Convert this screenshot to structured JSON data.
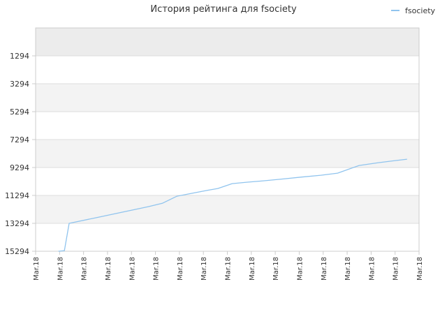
{
  "chart_data": {
    "type": "line",
    "title": "История рейтинга для fsociety",
    "xlabel": "",
    "ylabel": "",
    "y_inverted": true,
    "ylim": [
      15294,
      -706
    ],
    "y_ticks": [
      1294,
      3294,
      5294,
      7294,
      9294,
      11294,
      13294,
      15294
    ],
    "x_tick_labels": [
      "Mar.18",
      "Mar.18",
      "Mar.18",
      "Mar.18",
      "Mar.18",
      "Mar.18",
      "Mar.18",
      "Mar.18",
      "Mar.18",
      "Mar.18",
      "Mar.18",
      "Mar.18",
      "Mar.18",
      "Mar.18",
      "Mar.18",
      "Mar.18",
      "Mar.18"
    ],
    "x_range": [
      0,
      16
    ],
    "grid": true,
    "legend_position": "top-right",
    "series": [
      {
        "name": "fsociety",
        "color": "#90c4ee",
        "points": [
          [
            0.95,
            15294
          ],
          [
            1.2,
            15250
          ],
          [
            1.4,
            13294
          ],
          [
            2.5,
            12900
          ],
          [
            3.6,
            12500
          ],
          [
            4.7,
            12100
          ],
          [
            5.3,
            11850
          ],
          [
            5.9,
            11350
          ],
          [
            6.5,
            11150
          ],
          [
            7.2,
            10920
          ],
          [
            7.6,
            10800
          ],
          [
            8.2,
            10450
          ],
          [
            8.8,
            10350
          ],
          [
            9.5,
            10250
          ],
          [
            10.3,
            10120
          ],
          [
            11.1,
            9980
          ],
          [
            11.9,
            9850
          ],
          [
            12.6,
            9700
          ],
          [
            13.5,
            9150
          ],
          [
            14.3,
            8950
          ],
          [
            15.0,
            8800
          ],
          [
            15.5,
            8700
          ]
        ]
      }
    ],
    "colors": {
      "band_light": "#f3f3f3",
      "band_top": "#ececec",
      "grid": "#dddddd",
      "axis": "#cccccc"
    }
  }
}
